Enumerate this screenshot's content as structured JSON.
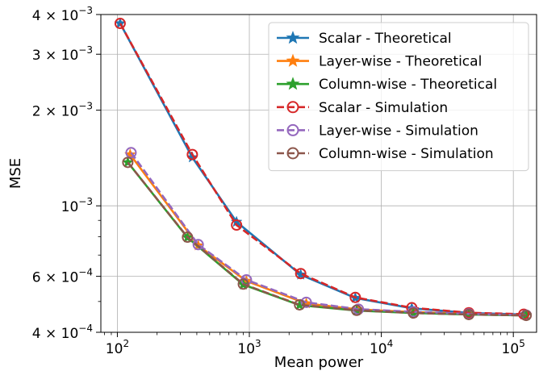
{
  "chart_data": {
    "type": "line",
    "xlabel": "Mean power",
    "ylabel": "MSE",
    "xscale": "log",
    "yscale": "log",
    "xlim": [
      75,
      150000
    ],
    "ylim": [
      0.0004,
      0.004
    ],
    "grid": true,
    "legend_position": "top-right",
    "x_ticks": [
      {
        "value": 100,
        "base": "10",
        "exp": "2"
      },
      {
        "value": 1000,
        "base": "10",
        "exp": "3"
      },
      {
        "value": 10000,
        "base": "10",
        "exp": "4"
      },
      {
        "value": 100000,
        "base": "10",
        "exp": "5"
      }
    ],
    "y_ticks": [
      {
        "value": 0.004,
        "mant": "4 × 10",
        "exp": "−3"
      },
      {
        "value": 0.003,
        "mant": "3 × 10",
        "exp": "−3"
      },
      {
        "value": 0.002,
        "mant": "2 × 10",
        "exp": "−3"
      },
      {
        "value": 0.001,
        "mant": "10",
        "exp": "−3"
      },
      {
        "value": 0.0006,
        "mant": "6 × 10",
        "exp": "−4"
      },
      {
        "value": 0.0004,
        "mant": "4 × 10",
        "exp": "−4"
      }
    ],
    "series": [
      {
        "name": "Scalar - Theoretical",
        "color": "#1f77b4",
        "style": "solid",
        "marker": "star",
        "x": [
          105,
          370,
          800,
          2450,
          6350,
          17000,
          46000,
          120000
        ],
        "y": [
          0.00375,
          0.00142,
          0.00089,
          0.000607,
          0.000513,
          0.000476,
          0.00046,
          0.000455
        ]
      },
      {
        "name": "Layer-wise - Theoretical",
        "color": "#ff7f0e",
        "style": "solid",
        "marker": "star",
        "x": [
          125,
          410,
          950,
          2700,
          6700,
          17500,
          46000,
          125000
        ],
        "y": [
          0.00145,
          0.00075,
          0.00058,
          0.000493,
          0.000472,
          0.000463,
          0.000457,
          0.000453
        ]
      },
      {
        "name": "Column-wise - Theoretical",
        "color": "#2ca02c",
        "style": "solid",
        "marker": "star",
        "x": [
          120,
          340,
          900,
          2400,
          6500,
          17500,
          46000,
          125000
        ],
        "y": [
          0.00137,
          0.000795,
          0.000565,
          0.000487,
          0.000468,
          0.00046,
          0.000455,
          0.000452
        ]
      },
      {
        "name": "Scalar - Simulation",
        "color": "#d62728",
        "style": "dashed",
        "marker": "circle",
        "x": [
          105,
          370,
          800,
          2450,
          6350,
          17000,
          46000,
          120000
        ],
        "y": [
          0.00375,
          0.00145,
          0.00087,
          0.000612,
          0.000515,
          0.000478,
          0.000461,
          0.000456
        ]
      },
      {
        "name": "Layer-wise - Simulation",
        "color": "#9467bd",
        "style": "dashed",
        "marker": "circle",
        "x": [
          127,
          410,
          950,
          2700,
          6700,
          17500,
          46000,
          125000
        ],
        "y": [
          0.00147,
          0.000755,
          0.000585,
          0.000497,
          0.000473,
          0.000464,
          0.000457,
          0.000453
        ]
      },
      {
        "name": "Column-wise - Simulation",
        "color": "#8c564b",
        "style": "dashed",
        "marker": "circle",
        "x": [
          120,
          340,
          900,
          2400,
          6500,
          17500,
          46000,
          125000
        ],
        "y": [
          0.00137,
          0.000797,
          0.000567,
          0.000488,
          0.000469,
          0.00046,
          0.000455,
          0.000452
        ]
      }
    ]
  }
}
